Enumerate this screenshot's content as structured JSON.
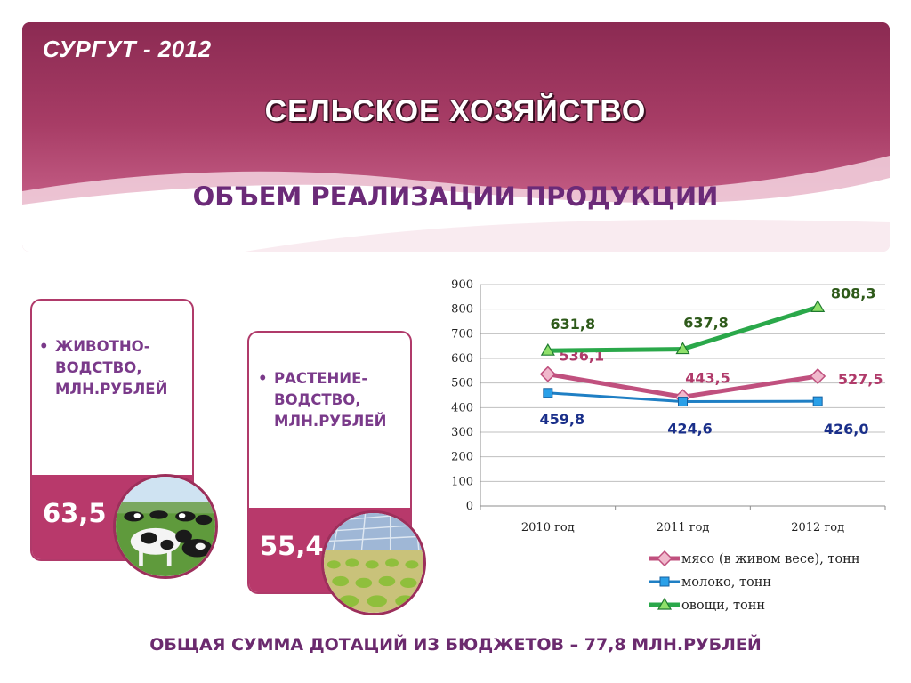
{
  "header": {
    "city": "СУРГУТ - 2012",
    "title": "СЕЛЬСКОЕ ХОЗЯЙСТВО",
    "subtitle": "ОБЪЕМ РЕАЛИЗАЦИИ ПРОДУКЦИИ"
  },
  "cards": {
    "livestock": {
      "bullet": "•",
      "label": "ЖИВОТНО-ВОДСТВО, МЛН.РУБЛЕЙ",
      "label_lines": [
        "ЖИВОТНО-",
        "ВОДСТВО,",
        "МЛН.РУБЛЕЙ"
      ],
      "value": "63,5",
      "photo_icon": "cows-photo-icon"
    },
    "crops": {
      "bullet": "•",
      "label": "РАСТЕНИЕ-ВОДСТВО, МЛН.РУБЛЕЙ",
      "label_lines": [
        "РАСТЕНИЕ-",
        "ВОДСТВО,",
        "МЛН.РУБЛЕЙ"
      ],
      "value": "55,4",
      "photo_icon": "greenhouse-photo-icon"
    }
  },
  "footer": {
    "text": "ОБЩАЯ СУММА ДОТАЦИЙ ИЗ  БЮДЖЕТОВ – 77,8 МЛН.РУБЛЕЙ"
  },
  "colors": {
    "header": "#a83d66",
    "card_border": "#b03a6a",
    "card_value": "#b8396b",
    "subtitle": "#6b2a78",
    "meat": "#c0507e",
    "milk": "#1f7fc4",
    "vegetables": "#2aa84a"
  },
  "chart_data": {
    "type": "line",
    "categories": [
      "2010 год",
      "2011 год",
      "2012 год"
    ],
    "ylim": [
      0,
      900
    ],
    "yticks": [
      0,
      100,
      200,
      300,
      400,
      500,
      600,
      700,
      800,
      900
    ],
    "grid": true,
    "legend_position": "bottom-right",
    "series": [
      {
        "name": "мясо (в живом весе), тонн",
        "values": [
          536.1,
          443.5,
          527.5
        ],
        "labels": [
          "536,1",
          "443,5",
          "527,5"
        ],
        "color": "#c0507e",
        "marker": "diamond",
        "label_color": "#b03a6a"
      },
      {
        "name": "молоко, тонн",
        "values": [
          459.8,
          424.6,
          426.0
        ],
        "labels": [
          "459,8",
          "424,6",
          "426,0"
        ],
        "color": "#1f7fc4",
        "marker": "square",
        "label_color": "#1a2f8a"
      },
      {
        "name": "овощи, тонн",
        "values": [
          631.8,
          637.8,
          808.3
        ],
        "labels": [
          "631,8",
          "637,8",
          "808,3"
        ],
        "color": "#2aa84a",
        "marker": "triangle",
        "label_color": "#2e5a1a"
      }
    ]
  }
}
